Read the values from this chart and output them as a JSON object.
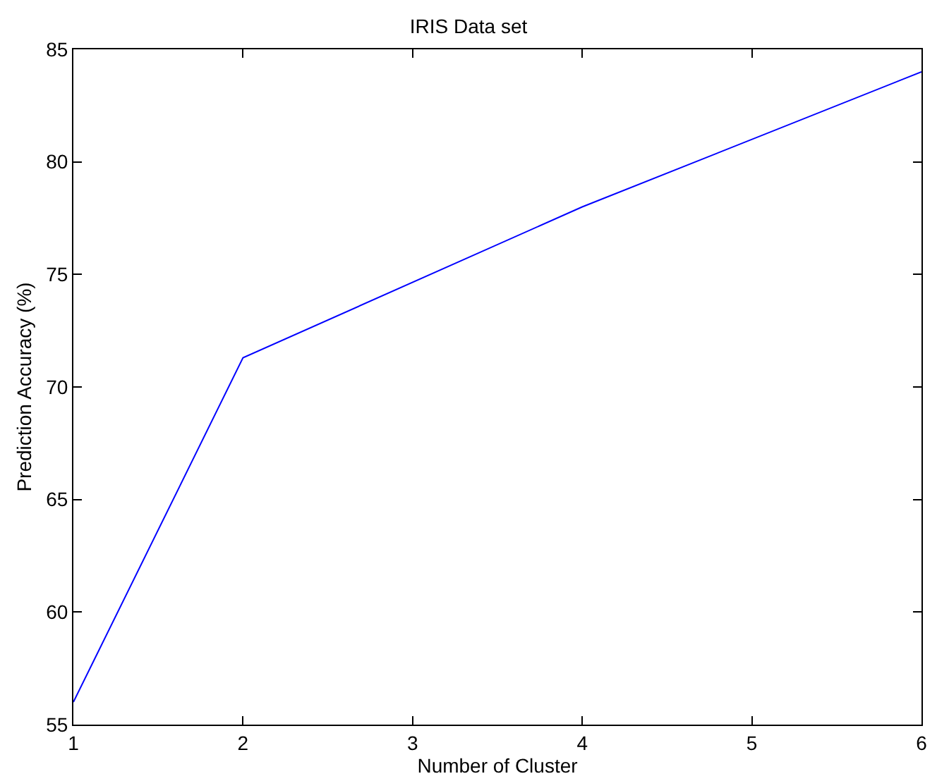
{
  "chart_data": {
    "type": "line",
    "title": "IRIS Data set",
    "xlabel": "Number of Cluster",
    "ylabel": "Prediction Accuracy (%)",
    "x": [
      1,
      2,
      4,
      6
    ],
    "series": [
      {
        "color": "#0000ff",
        "values": [
          56,
          71.3,
          78,
          84
        ]
      }
    ],
    "xlim": [
      1,
      6
    ],
    "xticks": [
      1,
      2,
      3,
      4,
      5,
      6
    ],
    "ylim": [
      55,
      85
    ],
    "yticks": [
      55,
      60,
      65,
      70,
      75,
      80,
      85
    ],
    "marker": "none",
    "line_style": "solid"
  }
}
